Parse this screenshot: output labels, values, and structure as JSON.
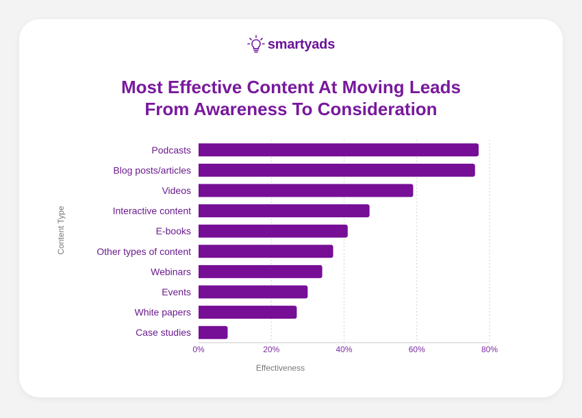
{
  "brand": {
    "name": "smartyads",
    "logo_icon": "lightbulb-icon",
    "color": "#6a1299"
  },
  "chart_data": {
    "type": "bar",
    "orientation": "horizontal",
    "title_lines": [
      "Most Effective Content At Moving Leads",
      "From Awareness To Consideration"
    ],
    "categories": [
      "Podcasts",
      "Blog posts/articles",
      "Videos",
      "Interactive content",
      "E-books",
      "Other types of content",
      "Webinars",
      "Events",
      "White papers",
      "Case studies"
    ],
    "values": [
      77,
      76,
      59,
      47,
      41,
      37,
      34,
      30,
      27,
      8
    ],
    "xlabel": "Effectiveness",
    "ylabel": "Content Type",
    "xlim": [
      0,
      80
    ],
    "xticks": [
      0,
      20,
      40,
      60,
      80
    ],
    "tick_labels": [
      "0%",
      "20%",
      "40%",
      "60%",
      "80%"
    ],
    "grid": "vertical dotted",
    "bar_color": "#760e96"
  }
}
